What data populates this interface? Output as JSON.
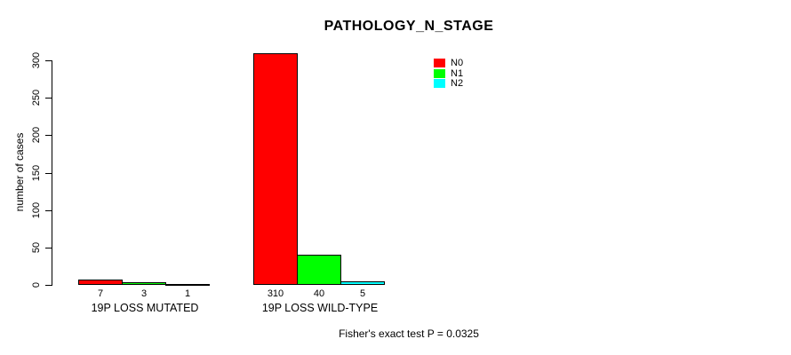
{
  "chart_data": {
    "type": "bar",
    "title": "PATHOLOGY_N_STAGE",
    "ylabel": "number of cases",
    "xlabel": "",
    "ylim": [
      0,
      300
    ],
    "yticks": [
      0,
      50,
      100,
      150,
      200,
      250,
      300
    ],
    "grid": false,
    "categories": [
      "19P LOSS MUTATED",
      "19P LOSS WILD-TYPE"
    ],
    "series": [
      {
        "name": "N0",
        "color": "#ff0000",
        "values": [
          7,
          310
        ]
      },
      {
        "name": "N1",
        "color": "#00ff00",
        "values": [
          3,
          40
        ]
      },
      {
        "name": "N2",
        "color": "#00ffff",
        "values": [
          1,
          5
        ]
      }
    ],
    "legend_position": "top-right",
    "bar_border_color": "#000000",
    "annotation": "Fisher's exact test P = 0.0325"
  }
}
